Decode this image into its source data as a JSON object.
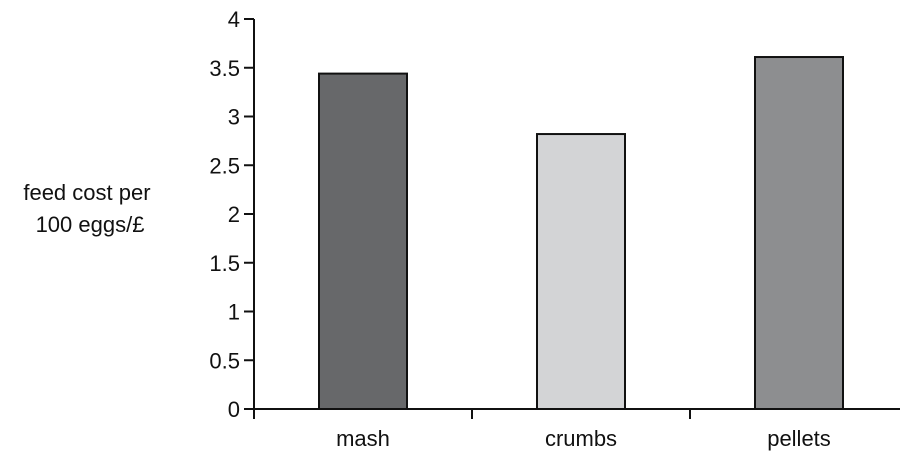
{
  "chart_data": {
    "type": "bar",
    "ylabel_lines": [
      "feed cost per",
      "100 eggs/£"
    ],
    "categories": [
      "mash",
      "crumbs",
      "pellets"
    ],
    "values": [
      3.44,
      2.82,
      3.61
    ],
    "colors": [
      "#67686a",
      "#d3d4d6",
      "#8d8e90"
    ],
    "ylim": [
      0,
      4
    ],
    "yticks": [
      0,
      0.5,
      1,
      1.5,
      2,
      2.5,
      3,
      3.5,
      4
    ],
    "ytick_labels": [
      "0",
      "0.5",
      "1",
      "1.5",
      "2",
      "2.5",
      "3",
      "3.5",
      "4"
    ],
    "grid": false,
    "legend": false
  }
}
